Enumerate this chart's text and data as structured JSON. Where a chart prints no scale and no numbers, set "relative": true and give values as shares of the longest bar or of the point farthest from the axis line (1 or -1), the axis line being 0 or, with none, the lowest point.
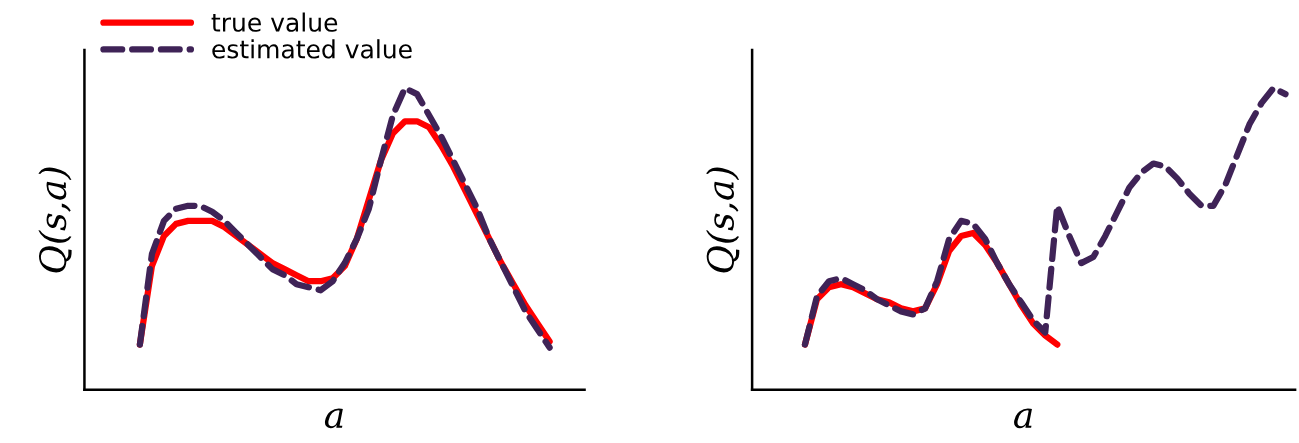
{
  "chart_data": [
    {
      "type": "line",
      "relative": true,
      "xlabel": "a",
      "ylabel": "Q(s,a)",
      "legend": "top left",
      "grid": false,
      "marker": "none",
      "categories": [
        null,
        null,
        null,
        null,
        null,
        null,
        null,
        null,
        null,
        null,
        null,
        null,
        null,
        null,
        null,
        null,
        null,
        null,
        null,
        null,
        null,
        null,
        null,
        null,
        null,
        null,
        null,
        null,
        null,
        null,
        null,
        null,
        null,
        null,
        null
      ],
      "series": [
        {
          "name": "true value",
          "color": "#ff0000",
          "line_style": "solid",
          "values": [
            0.15,
            0.41,
            0.51,
            0.55,
            0.56,
            0.56,
            0.56,
            0.54,
            0.51,
            0.48,
            0.45,
            0.42,
            0.4,
            0.38,
            0.36,
            0.36,
            0.37,
            0.41,
            0.5,
            0.63,
            0.76,
            0.85,
            0.89,
            0.89,
            0.87,
            0.81,
            0.74,
            0.66,
            0.58,
            0.5,
            0.42,
            0.35,
            0.28,
            0.22,
            0.16
          ]
        },
        {
          "name": "estimated value",
          "color": "#3f2357",
          "line_style": "dashed",
          "values": [
            0.15,
            0.45,
            0.56,
            0.6,
            0.61,
            0.61,
            0.59,
            0.56,
            0.52,
            0.48,
            0.44,
            0.4,
            0.38,
            0.35,
            0.34,
            0.33,
            0.36,
            0.42,
            0.5,
            0.6,
            0.76,
            0.91,
            1.0,
            0.98,
            0.91,
            0.84,
            0.76,
            0.68,
            0.6,
            0.5,
            0.42,
            0.34,
            0.26,
            0.2,
            0.14
          ]
        }
      ]
    },
    {
      "type": "line",
      "relative": true,
      "xlabel": "a",
      "ylabel": "Q(s,a)",
      "grid": false,
      "marker": "none",
      "categories": [
        null,
        null,
        null,
        null,
        null,
        null,
        null,
        null,
        null,
        null,
        null,
        null,
        null,
        null,
        null,
        null,
        null,
        null,
        null,
        null,
        null,
        null,
        null,
        null,
        null,
        null,
        null,
        null,
        null,
        null,
        null,
        null,
        null,
        null,
        null,
        null,
        null,
        null,
        null,
        null,
        null
      ],
      "series": [
        {
          "color": "#ff0000",
          "line_style": "solid",
          "values": [
            0.15,
            0.3,
            0.34,
            0.35,
            0.34,
            0.32,
            0.3,
            0.29,
            0.27,
            0.26,
            0.27,
            0.35,
            0.46,
            0.51,
            0.52,
            0.48,
            0.42,
            0.35,
            0.28,
            0.22,
            0.18,
            0.15,
            null,
            null,
            null,
            null,
            null,
            null,
            null,
            null,
            null,
            null,
            null,
            null,
            null,
            null,
            null,
            null,
            null,
            null,
            null
          ]
        },
        {
          "color": "#3f2357",
          "line_style": "dashed",
          "values": [
            0.15,
            0.31,
            0.36,
            0.37,
            0.35,
            0.33,
            0.3,
            0.28,
            0.26,
            0.25,
            0.27,
            0.36,
            0.5,
            0.56,
            0.55,
            0.5,
            0.42,
            0.35,
            0.29,
            0.23,
            0.19,
            0.61,
            0.51,
            0.42,
            0.44,
            0.51,
            0.59,
            0.67,
            0.72,
            0.75,
            0.74,
            0.7,
            0.65,
            0.61,
            0.61,
            0.68,
            0.78,
            0.88,
            0.95,
            1.0,
            0.98
          ]
        }
      ]
    }
  ]
}
